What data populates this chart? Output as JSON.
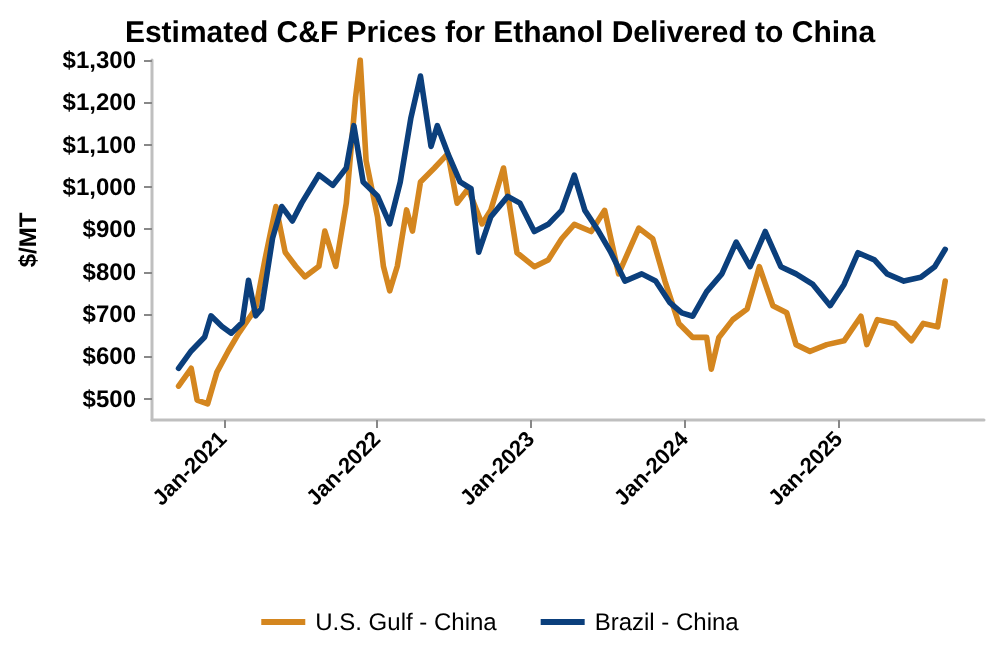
{
  "chart_data": {
    "type": "line",
    "title": "Estimated C&F Prices for Ethanol Delivered to China",
    "ylabel": "$/MT",
    "xlim": [
      "2020-07-15",
      "2025-12-10"
    ],
    "xticks": [
      {
        "value": "2021-01-01",
        "label": "Jan-2021"
      },
      {
        "value": "2022-01-01",
        "label": "Jan-2022"
      },
      {
        "value": "2023-01-01",
        "label": "Jan-2023"
      },
      {
        "value": "2024-01-01",
        "label": "Jan-2024"
      },
      {
        "value": "2025-01-01",
        "label": "Jan-2025"
      }
    ],
    "ylim": [
      450,
      1300
    ],
    "yticks": [
      {
        "value": 500,
        "label": "$500"
      },
      {
        "value": 600,
        "label": "$600"
      },
      {
        "value": 700,
        "label": "$700"
      },
      {
        "value": 800,
        "label": "$800"
      },
      {
        "value": 900,
        "label": "$900"
      },
      {
        "value": 1000,
        "label": "$1,000"
      },
      {
        "value": 1100,
        "label": "$1,100"
      },
      {
        "value": 1200,
        "label": "$1,200"
      },
      {
        "value": 1300,
        "label": "$1,300"
      }
    ],
    "grid": false,
    "legend": "bottom",
    "marker": "none",
    "line_style": "solid",
    "series": [
      {
        "name": "U.S. Gulf - China",
        "color": "#d4861f",
        "x": [
          "2020-09-16",
          "2020-10-16",
          "2020-10-30",
          "2020-11-24",
          "2020-12-16",
          "2021-01-12",
          "2021-02-06",
          "2021-03-18",
          "2021-04-09",
          "2021-05-05",
          "2021-05-27",
          "2021-06-21",
          "2021-07-13",
          "2021-08-15",
          "2021-08-29",
          "2021-09-24",
          "2021-10-19",
          "2021-11-10",
          "2021-11-21",
          "2021-12-05",
          "2022-01-01",
          "2022-01-15",
          "2022-01-30",
          "2022-02-17",
          "2022-03-11",
          "2022-03-25",
          "2022-04-13",
          "2022-05-16",
          "2022-06-17",
          "2022-07-09",
          "2022-08-04",
          "2022-09-06",
          "2022-09-27",
          "2022-10-27",
          "2022-11-28",
          "2023-01-08",
          "2023-02-10",
          "2023-03-14",
          "2023-04-13",
          "2023-05-23",
          "2023-06-24",
          "2023-07-27",
          "2023-09-13",
          "2023-10-16",
          "2023-11-14",
          "2023-12-17",
          "2024-01-19",
          "2024-02-21",
          "2024-03-03",
          "2024-03-21",
          "2024-04-23",
          "2024-05-27",
          "2024-06-25",
          "2024-07-27",
          "2024-08-29",
          "2024-09-20",
          "2024-10-23",
          "2024-12-02",
          "2025-01-12",
          "2025-02-21",
          "2025-03-07",
          "2025-04-01",
          "2025-05-12",
          "2025-06-21",
          "2025-07-19",
          "2025-08-22",
          "2025-09-09"
        ],
        "values": [
          530,
          572,
          497,
          488,
          563,
          613,
          655,
          713,
          829,
          954,
          846,
          813,
          788,
          813,
          896,
          813,
          962,
          1212,
          1300,
          1062,
          930,
          813,
          755,
          813,
          946,
          896,
          1012,
          1045,
          1079,
          962,
          996,
          913,
          946,
          1045,
          845,
          812,
          828,
          878,
          912,
          895,
          945,
          795,
          903,
          878,
          778,
          678,
          645,
          645,
          570,
          645,
          687,
          712,
          812,
          720,
          703,
          628,
          612,
          628,
          637,
          695,
          628,
          687,
          678,
          637,
          678,
          670,
          778
        ]
      },
      {
        "name": "Brazil - China",
        "color": "#0b3f7c",
        "x": [
          "2020-09-16",
          "2020-10-16",
          "2020-11-17",
          "2020-12-02",
          "2020-12-28",
          "2021-01-19",
          "2021-02-14",
          "2021-03-01",
          "2021-03-18",
          "2021-04-01",
          "2021-04-27",
          "2021-05-19",
          "2021-06-13",
          "2021-07-05",
          "2021-08-15",
          "2021-09-17",
          "2021-10-19",
          "2021-11-06",
          "2021-11-28",
          "2022-01-01",
          "2022-01-30",
          "2022-02-24",
          "2022-03-21",
          "2022-04-13",
          "2022-05-08",
          "2022-05-23",
          "2022-06-17",
          "2022-07-16",
          "2022-08-11",
          "2022-08-29",
          "2022-09-27",
          "2022-11-06",
          "2022-12-05",
          "2023-01-08",
          "2023-02-10",
          "2023-03-14",
          "2023-04-13",
          "2023-05-08",
          "2023-06-10",
          "2023-07-09",
          "2023-08-11",
          "2023-09-20",
          "2023-10-23",
          "2023-11-25",
          "2023-12-24",
          "2024-01-19",
          "2024-02-21",
          "2024-03-28",
          "2024-05-01",
          "2024-06-03",
          "2024-07-09",
          "2024-08-15",
          "2024-09-20",
          "2024-10-30",
          "2024-12-10",
          "2025-01-12",
          "2025-02-14",
          "2025-03-25",
          "2025-04-24",
          "2025-06-03",
          "2025-07-13",
          "2025-08-15",
          "2025-09-09"
        ],
        "values": [
          572,
          613,
          646,
          696,
          671,
          655,
          680,
          780,
          696,
          713,
          879,
          954,
          920,
          962,
          1029,
          1004,
          1045,
          1145,
          1012,
          979,
          913,
          1012,
          1162,
          1262,
          1096,
          1145,
          1079,
          1012,
          996,
          846,
          930,
          978,
          962,
          895,
          912,
          945,
          1028,
          945,
          895,
          845,
          778,
          795,
          778,
          728,
          703,
          695,
          753,
          795,
          870,
          812,
          895,
          812,
          795,
          770,
          720,
          770,
          845,
          828,
          795,
          778,
          787,
          812,
          853
        ]
      }
    ]
  }
}
